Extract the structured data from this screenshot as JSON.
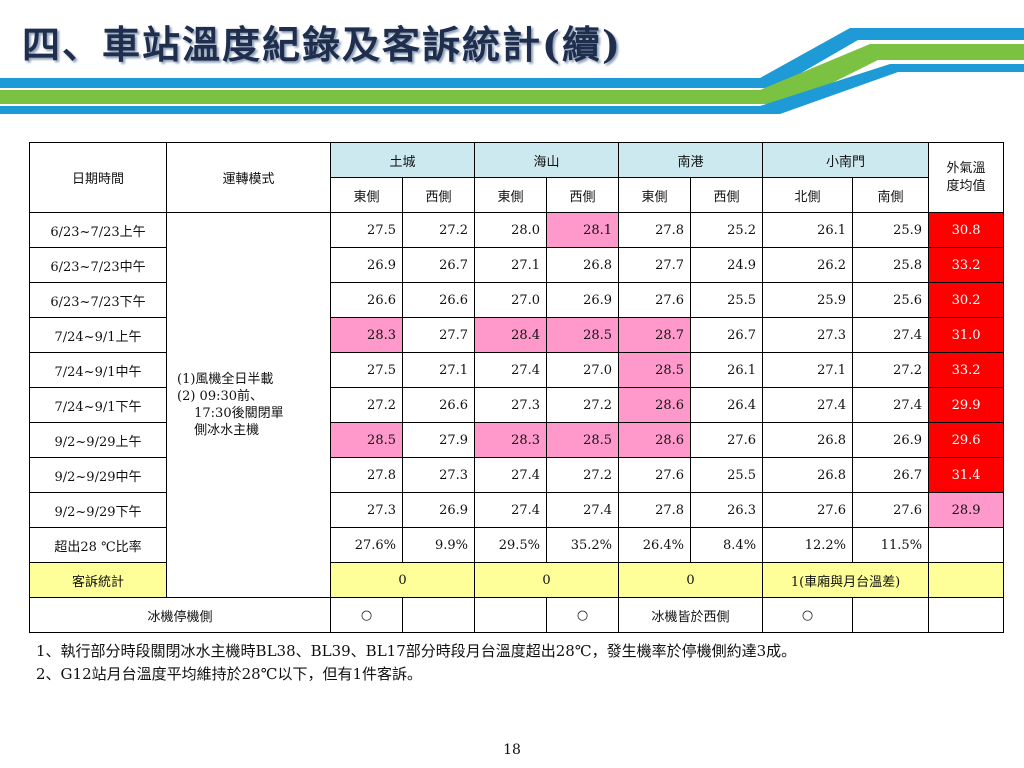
{
  "title": "四、車站溫度紀錄及客訴統計(續)",
  "header": {
    "date_time": "日期時間",
    "mode": "運轉模式",
    "stations": [
      "土城",
      "海山",
      "南港",
      "小南門"
    ],
    "outdoor_avg": "外氣溫度均值",
    "sides": [
      "東側",
      "西側",
      "東側",
      "西側",
      "東側",
      "西側",
      "北側",
      "南側"
    ]
  },
  "mode_text": "(1)風機全日半載\n(2) 09:30前、\n　 17:30後關閉單\n　 側冰水主機",
  "rows": [
    {
      "date": "6/23~7/23上午",
      "values": [
        "27.5",
        "27.2",
        "28.0",
        "28.1",
        "27.8",
        "25.2",
        "26.1",
        "25.9"
      ],
      "outdoor": "30.8"
    },
    {
      "date": "6/23~7/23中午",
      "values": [
        "26.9",
        "26.7",
        "27.1",
        "26.8",
        "27.7",
        "24.9",
        "26.2",
        "25.8"
      ],
      "outdoor": "33.2"
    },
    {
      "date": "6/23~7/23下午",
      "values": [
        "26.6",
        "26.6",
        "27.0",
        "26.9",
        "27.6",
        "25.5",
        "25.9",
        "25.6"
      ],
      "outdoor": "30.2"
    },
    {
      "date": "7/24~9/1上午",
      "values": [
        "28.3",
        "27.7",
        "28.4",
        "28.5",
        "28.7",
        "26.7",
        "27.3",
        "27.4"
      ],
      "outdoor": "31.0"
    },
    {
      "date": "7/24~9/1中午",
      "values": [
        "27.5",
        "27.1",
        "27.4",
        "27.0",
        "28.5",
        "26.1",
        "27.1",
        "27.2"
      ],
      "outdoor": "33.2"
    },
    {
      "date": "7/24~9/1下午",
      "values": [
        "27.2",
        "26.6",
        "27.3",
        "27.2",
        "28.6",
        "26.4",
        "27.4",
        "27.4"
      ],
      "outdoor": "29.9"
    },
    {
      "date": "9/2~9/29上午",
      "values": [
        "28.5",
        "27.9",
        "28.3",
        "28.5",
        "28.6",
        "27.6",
        "26.8",
        "26.9"
      ],
      "outdoor": "29.6"
    },
    {
      "date": "9/2~9/29中午",
      "values": [
        "27.8",
        "27.3",
        "27.4",
        "27.2",
        "27.6",
        "25.5",
        "26.8",
        "26.7"
      ],
      "outdoor": "31.4"
    },
    {
      "date": "9/2~9/29下午",
      "values": [
        "27.3",
        "26.9",
        "27.4",
        "27.4",
        "27.8",
        "26.3",
        "27.6",
        "27.6"
      ],
      "outdoor": "28.9"
    }
  ],
  "exceed_row": {
    "label": "超出28 ℃比率",
    "values": [
      "27.6%",
      "9.9%",
      "29.5%",
      "35.2%",
      "26.4%",
      "8.4%",
      "12.2%",
      "11.5%"
    ]
  },
  "complaint_row": {
    "label": "客訴統計",
    "values": [
      "0",
      "0",
      "0",
      "1(車廂與月台溫差)"
    ]
  },
  "chiller_row": {
    "label": "冰機停機側",
    "marks": [
      "○",
      "",
      "",
      "○",
      "冰機皆於西側",
      "",
      "○",
      ""
    ]
  },
  "notes": [
    "1、執行部分時段關閉冰水主機時BL38、BL39、BL17部分時段月台溫度超出28℃，發生機率於停機側約達3成。",
    "2、G12站月台溫度平均維持於28℃以下，但有1件客訴。"
  ],
  "page_number": "18",
  "colors": {
    "header_fill": "#cce9f0",
    "over_28_fill": "#ff99cc",
    "outdoor_high_fill": "#ff0000",
    "complaint_fill": "#ffff99",
    "title_color": "#1f2e4d"
  }
}
